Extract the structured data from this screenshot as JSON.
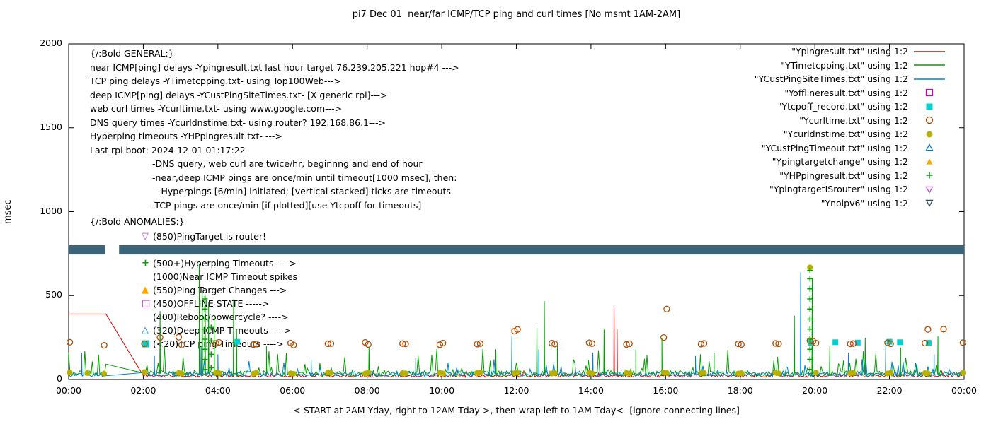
{
  "chart_data": {
    "type": "line",
    "title": "pi7 Dec 01  near/far ICMP/TCP ping and curl times [No msmt 1AM-2AM]",
    "ylabel": "msec",
    "xlabel": "<-START at 2AM Yday, right to 12AM Tday->, then wrap left to 1AM Tday<- [ignore connecting lines]",
    "ylim": [
      0,
      2000
    ],
    "xlim_hours": [
      0,
      24
    ],
    "y_ticks": [
      0,
      500,
      1000,
      1500,
      2000
    ],
    "x_tick_hours": [
      0,
      2,
      4,
      6,
      8,
      10,
      12,
      14,
      16,
      18,
      20,
      22,
      24
    ],
    "x_tick_labels": [
      "00:00",
      "02:00",
      "04:00",
      "06:00",
      "08:00",
      "10:00",
      "12:00",
      "14:00",
      "16:00",
      "18:00",
      "20:00",
      "22:00",
      "00:00"
    ],
    "band": {
      "series": "Ynoipv6",
      "y_bottom": 745,
      "y_top": 800,
      "color": "#3c6478",
      "segments": [
        [
          0,
          0.97
        ],
        [
          1.35,
          24
        ]
      ]
    },
    "series": [
      {
        "name": "\"Ypingresult.txt\" using 1:2",
        "kind": "line",
        "color": "#dd0000",
        "seed": 11,
        "flat": [
          [
            0,
            1.0,
            390
          ]
        ],
        "baseline": {
          "from": 2.0,
          "to": 24
        },
        "noise": {
          "lo": 14,
          "hi": 32,
          "p": 0.02,
          "burst": 40
        },
        "spikes": [
          [
            14.62,
            428
          ],
          [
            14.7,
            300
          ]
        ]
      },
      {
        "name": "\"YTimetcpping.txt\" using 1:2",
        "kind": "line",
        "color": "#00a000",
        "seed": 7,
        "baseline": {
          "from": 0,
          "to": 24
        },
        "gap": [
          1.02,
          1.95
        ],
        "noise": {
          "lo": 18,
          "hi": 52,
          "p": 0.15,
          "burst": 150
        },
        "spikes": [
          [
            2.45,
            408
          ],
          [
            3.5,
            688
          ],
          [
            3.58,
            540
          ],
          [
            3.66,
            500
          ],
          [
            3.75,
            460
          ],
          [
            3.9,
            380
          ],
          [
            4.42,
            478
          ],
          [
            4.5,
            300
          ],
          [
            5.3,
            200
          ],
          [
            8.05,
            190
          ],
          [
            11.45,
            180
          ],
          [
            12.55,
            312
          ],
          [
            12.75,
            468
          ],
          [
            13.1,
            200
          ],
          [
            14.35,
            298
          ],
          [
            15.2,
            180
          ],
          [
            15.9,
            248
          ],
          [
            17.3,
            160
          ],
          [
            19.45,
            380
          ],
          [
            19.93,
            598
          ],
          [
            20.4,
            200
          ],
          [
            21.35,
            248
          ],
          [
            22.3,
            190
          ],
          [
            23.3,
            258
          ]
        ]
      },
      {
        "name": "\"YCustPingSiteTimes.txt\" using 1:2",
        "kind": "line",
        "color": "#0080d0",
        "seed": 13,
        "baseline": {
          "from": 0,
          "to": 24
        },
        "gap": [
          1.02,
          1.95
        ],
        "noise": {
          "lo": 18,
          "hi": 45,
          "p": 0.08,
          "burst": 100
        },
        "spikes": [
          [
            0.35,
            160
          ],
          [
            2.3,
            140
          ],
          [
            3.55,
            200
          ],
          [
            4.0,
            150
          ],
          [
            6.5,
            120
          ],
          [
            9.3,
            130
          ],
          [
            11.88,
            255
          ],
          [
            12.6,
            180
          ],
          [
            14.05,
            160
          ],
          [
            16.8,
            140
          ],
          [
            19.62,
            638
          ],
          [
            20.9,
            160
          ],
          [
            21.9,
            200
          ],
          [
            23.2,
            150
          ]
        ]
      },
      {
        "name": "\"Yofflineresult.txt\" using 1:2",
        "kind": "points",
        "marker": "square-open",
        "color": "#d000d0",
        "points": []
      },
      {
        "name": "\"Ytcpoff_record.txt\" using 1:2",
        "kind": "points",
        "marker": "square-filled",
        "color": "#00d0d0",
        "points": [
          [
            4.52,
            225
          ],
          [
            19.9,
            218
          ],
          [
            20.55,
            222
          ],
          [
            21.15,
            220
          ],
          [
            22.0,
            225
          ],
          [
            22.28,
            222
          ],
          [
            23.05,
            218
          ]
        ]
      },
      {
        "name": "\"Ycurltime.txt\" using 1:2",
        "kind": "points",
        "marker": "circle-open",
        "color": "#b34d00",
        "points": [
          [
            0.03,
            222
          ],
          [
            0.95,
            204
          ],
          [
            2.03,
            213
          ],
          [
            2.45,
            250
          ],
          [
            2.95,
            252
          ],
          [
            3.03,
            206
          ],
          [
            3.95,
            215
          ],
          [
            4.03,
            221
          ],
          [
            4.95,
            208
          ],
          [
            5.03,
            211
          ],
          [
            5.95,
            217
          ],
          [
            6.03,
            205
          ],
          [
            6.95,
            213
          ],
          [
            7.03,
            214
          ],
          [
            7.95,
            221
          ],
          [
            8.03,
            209
          ],
          [
            8.95,
            214
          ],
          [
            9.03,
            212
          ],
          [
            9.95,
            207
          ],
          [
            10.03,
            217
          ],
          [
            10.95,
            211
          ],
          [
            11.03,
            214
          ],
          [
            11.95,
            288
          ],
          [
            12.03,
            298
          ],
          [
            12.95,
            216
          ],
          [
            13.03,
            211
          ],
          [
            13.95,
            219
          ],
          [
            14.03,
            214
          ],
          [
            14.95,
            209
          ],
          [
            15.03,
            213
          ],
          [
            15.95,
            250
          ],
          [
            16.03,
            420
          ],
          [
            16.95,
            211
          ],
          [
            17.03,
            215
          ],
          [
            17.95,
            212
          ],
          [
            18.03,
            209
          ],
          [
            18.95,
            215
          ],
          [
            19.03,
            213
          ],
          [
            19.87,
            231
          ],
          [
            19.95,
            228
          ],
          [
            20.03,
            217
          ],
          [
            20.95,
            212
          ],
          [
            21.03,
            214
          ],
          [
            21.95,
            219
          ],
          [
            22.03,
            213
          ],
          [
            22.95,
            217
          ],
          [
            23.03,
            298
          ],
          [
            23.45,
            300
          ],
          [
            23.97,
            220
          ]
        ]
      },
      {
        "name": "\"Ycurldnstime.txt\" using 1:2",
        "kind": "points",
        "marker": "circle-filled",
        "color": "#b8b000",
        "points": [
          [
            0.03,
            42
          ],
          [
            0.5,
            38
          ],
          [
            0.95,
            35
          ],
          [
            2.03,
            44
          ],
          [
            2.95,
            39
          ],
          [
            3.03,
            36
          ],
          [
            3.95,
            41
          ],
          [
            4.03,
            38
          ],
          [
            4.95,
            35
          ],
          [
            5.03,
            40
          ],
          [
            5.95,
            37
          ],
          [
            6.03,
            35
          ],
          [
            6.95,
            42
          ],
          [
            7.03,
            39
          ],
          [
            7.95,
            36
          ],
          [
            8.03,
            41
          ],
          [
            8.95,
            38
          ],
          [
            9.03,
            37
          ],
          [
            9.95,
            40
          ],
          [
            10.03,
            36
          ],
          [
            10.95,
            39
          ],
          [
            11.03,
            42
          ],
          [
            11.95,
            37
          ],
          [
            12.03,
            40
          ],
          [
            12.95,
            36
          ],
          [
            13.03,
            38
          ],
          [
            13.95,
            41
          ],
          [
            14.03,
            37
          ],
          [
            14.95,
            39
          ],
          [
            15.03,
            36
          ],
          [
            15.95,
            42
          ],
          [
            16.03,
            39
          ],
          [
            16.95,
            37
          ],
          [
            17.03,
            40
          ],
          [
            17.95,
            36
          ],
          [
            18.03,
            38
          ],
          [
            18.95,
            40
          ],
          [
            19.03,
            37
          ],
          [
            19.87,
            668
          ],
          [
            20.03,
            41
          ],
          [
            20.95,
            38
          ],
          [
            21.03,
            39
          ],
          [
            21.95,
            36
          ],
          [
            22.03,
            40
          ],
          [
            22.95,
            38
          ],
          [
            23.03,
            37
          ],
          [
            23.97,
            40
          ]
        ]
      },
      {
        "name": "\"YCustPingTimeout.txt\" using 1:2",
        "kind": "points",
        "marker": "triangle-open",
        "color": "#0080d0",
        "points": []
      },
      {
        "name": "\"Ypingtargetchange\" using 1:2",
        "kind": "points",
        "marker": "triangle-filled",
        "color": "#ffa500",
        "points": []
      },
      {
        "name": "\"YHPpingresult.txt\" using 1:2",
        "kind": "points",
        "marker": "plus",
        "color": "#00a000",
        "points": [
          [
            3.65,
            60
          ],
          [
            3.65,
            120
          ],
          [
            3.65,
            180
          ],
          [
            3.65,
            240
          ],
          [
            3.65,
            300
          ],
          [
            3.65,
            360
          ],
          [
            3.65,
            420
          ],
          [
            3.65,
            480
          ],
          [
            3.82,
            70
          ],
          [
            3.82,
            150
          ],
          [
            3.82,
            230
          ],
          [
            3.82,
            310
          ],
          [
            19.87,
            60
          ],
          [
            19.87,
            120
          ],
          [
            19.87,
            180
          ],
          [
            19.87,
            240
          ],
          [
            19.87,
            300
          ],
          [
            19.87,
            360
          ],
          [
            19.87,
            420
          ],
          [
            19.87,
            480
          ],
          [
            19.87,
            540
          ],
          [
            19.87,
            600
          ],
          [
            19.87,
            650
          ]
        ]
      },
      {
        "name": "\"YpingtargetISrouter\" using 1:2",
        "kind": "points",
        "marker": "tri-down-open",
        "color": "#ba55d3",
        "points": []
      },
      {
        "name": "\"Ynoipv6\" using 1:2",
        "kind": "points",
        "marker": "tri-down-open",
        "color": "#2f4f5f",
        "points": []
      }
    ],
    "annotations": {
      "general_header": "{/:Bold GENERAL:}",
      "general": [
        "near ICMP[ping] delays -Ypingresult.txt last hour target 76.239.205.221 hop#4 --->",
        "TCP ping delays -YTimetcpping.txt- using Top100Web--->",
        "deep ICMP[ping] delays -YCustPingSiteTimes.txt- [X generic rpi]--->",
        "web curl times -Ycurltime.txt- using www.google.com--->",
        "DNS query times -Ycurldnstime.txt- using router? 192.168.86.1--->",
        "Hyperping timeouts -YHPpingresult.txt- --->",
        "Last rpi boot: 2024-12-01 01:17:22"
      ],
      "notes": [
        "-DNS query, web curl are twice/hr, beginnng and end of hour",
        "-near,deep ICMP pings are once/min until timeout[1000 msec], then:",
        "  -Hyperpings [6/min] initiated; [vertical stacked] ticks are timeouts",
        "-TCP pings are once/min [if plotted][use Ytcpoff for timeouts]"
      ],
      "anomalies_header": "{/:Bold ANOMALIES:}",
      "anomalies": [
        {
          "glyph": "▽",
          "color": "#ba55d3",
          "text": "(850)PingTarget is router!"
        },
        {
          "glyph": "",
          "color": "",
          "text": ""
        },
        {
          "glyph": "+",
          "color": "#00a000",
          "text": "(500+)Hyperping Timeouts ---->"
        },
        {
          "glyph": "",
          "color": "",
          "text": "(1000)Near ICMP Timeout spikes"
        },
        {
          "glyph": "▲",
          "color": "#ffa500",
          "text": "(550)Ping Target Changes --->"
        },
        {
          "glyph": "□",
          "color": "#d000d0",
          "text": "(450)OFFLINE STATE ----->"
        },
        {
          "glyph": "",
          "color": "",
          "text": "(400)Reboot/powercycle? ---->"
        },
        {
          "glyph": "△",
          "color": "#0080d0",
          "text": "(320)Deep ICMP Timeouts ---->"
        },
        {
          "glyph": "■",
          "color": "#00d0d0",
          "text": "(<20)TCP ping Timeouts ---->"
        }
      ]
    }
  }
}
